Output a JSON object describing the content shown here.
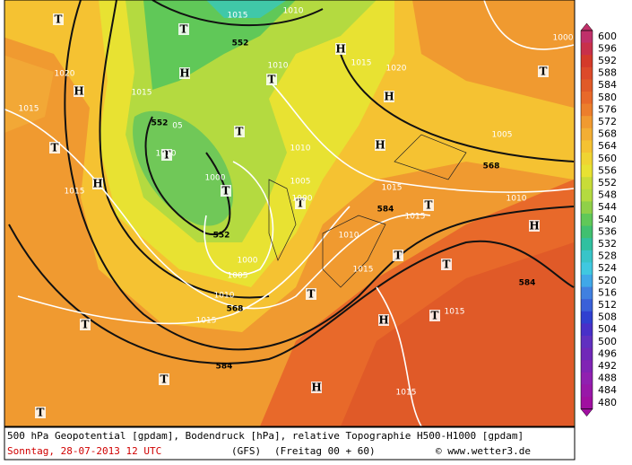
{
  "legend": {
    "labels": [
      "600",
      "596",
      "592",
      "588",
      "584",
      "580",
      "576",
      "572",
      "568",
      "564",
      "560",
      "556",
      "552",
      "548",
      "544",
      "540",
      "536",
      "532",
      "528",
      "524",
      "520",
      "516",
      "512",
      "508",
      "504",
      "500",
      "496",
      "492",
      "488",
      "484",
      "480"
    ]
  },
  "markers": [
    "T",
    "T",
    "H",
    "H",
    "H",
    "T",
    "H",
    "T",
    "T",
    "T",
    "T",
    "H",
    "H",
    "T",
    "T",
    "T",
    "H",
    "T",
    "T",
    "T",
    "H",
    "T",
    "T",
    "T",
    "H",
    "T"
  ],
  "contour_labels": [
    "1015",
    "1010",
    "552",
    "1010",
    "1015",
    "1020",
    "1020",
    "1015",
    "1015",
    "552",
    "05",
    "1010",
    "1010",
    "1005",
    "568",
    "1015",
    "1005",
    "1000",
    "1000",
    "1015",
    "1010",
    "1015",
    "584",
    "552",
    "1010",
    "1000",
    "1015",
    "1005",
    "1010",
    "584",
    "568",
    "1015",
    "1015",
    "584",
    "1015",
    "1000"
  ],
  "footer": {
    "description": "500 hPa Geopotential [gpdam], Bodendruck [hPa], relative Topographie H500-H1000 [gpdam]",
    "date": "Sonntag, 28-07-2013  12 UTC",
    "model": "(GFS)",
    "forecast": "(Freitag 00 + 60)",
    "credit": "© www.wetter3.de"
  }
}
